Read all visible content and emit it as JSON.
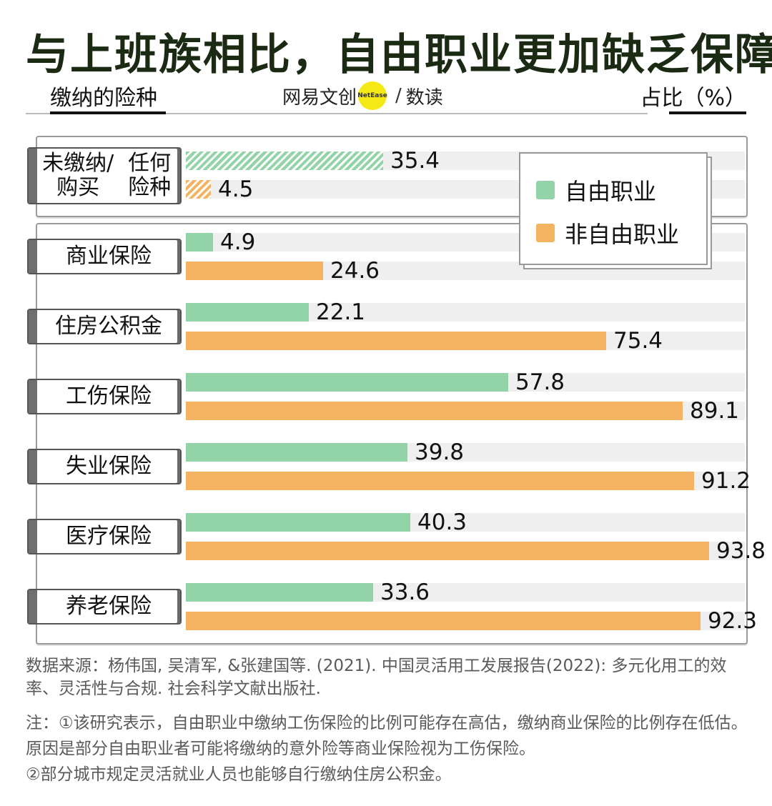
{
  "title": "与上班族相比，自由职业更加缺乏保障",
  "header": {
    "left_label": "缴纳的险种",
    "right_label": "占比（%）",
    "logo_text": "网易文创",
    "logo_badge": "NetEase",
    "logo_sub": "数读"
  },
  "colors": {
    "freelance": "#92d3a8",
    "non_freelance": "#f3b361",
    "track": "#efefef"
  },
  "legend": {
    "freelance": "自由职业",
    "non_freelance": "非自由职业"
  },
  "chart_data": {
    "type": "bar",
    "orientation": "horizontal",
    "categories": [
      "未缴纳/购买任何险种",
      "商业保险",
      "住房公积金",
      "工伤保险",
      "失业保险",
      "医疗保险",
      "养老保险"
    ],
    "category_lines": [
      [
        "未缴纳/购买",
        "任何险种"
      ],
      [
        "商业保险"
      ],
      [
        "住房公积金"
      ],
      [
        "工伤保险"
      ],
      [
        "失业保险"
      ],
      [
        "医疗保险"
      ],
      [
        "养老保险"
      ]
    ],
    "series": [
      {
        "name": "自由职业",
        "values": [
          35.4,
          4.9,
          22.1,
          57.8,
          39.8,
          40.3,
          33.6
        ]
      },
      {
        "name": "非自由职业",
        "values": [
          4.5,
          24.6,
          75.4,
          89.1,
          91.2,
          93.8,
          92.3
        ]
      }
    ],
    "value_labels": [
      [
        "35.4",
        "4.5"
      ],
      [
        "4.9",
        "24.6"
      ],
      [
        "22.1",
        "75.4"
      ],
      [
        "57.8",
        "89.1"
      ],
      [
        "39.8",
        "91.2"
      ],
      [
        "40.3",
        "93.8"
      ],
      [
        "33.6",
        "92.3"
      ]
    ],
    "xlim": [
      0,
      100
    ],
    "grid": false,
    "legend_position": "top-right"
  },
  "source": "数据来源：杨伟国, 吴清军, &张建国等. (2021). 中国灵活用工发展报告(2022): 多元化用工的效率、灵活性与合规. 社会科学文献出版社.",
  "note_lines": [
    "注：①该研究表示，自由职业中缴纳工伤保险的比例可能存在高估，缴纳商业保险的比例存在低估。原因是部分自由职业者可能将缴纳的意外险等商业保险视为工伤保险。",
    "②部分城市规定灵活就业人员也能够自行缴纳住房公积金。"
  ]
}
